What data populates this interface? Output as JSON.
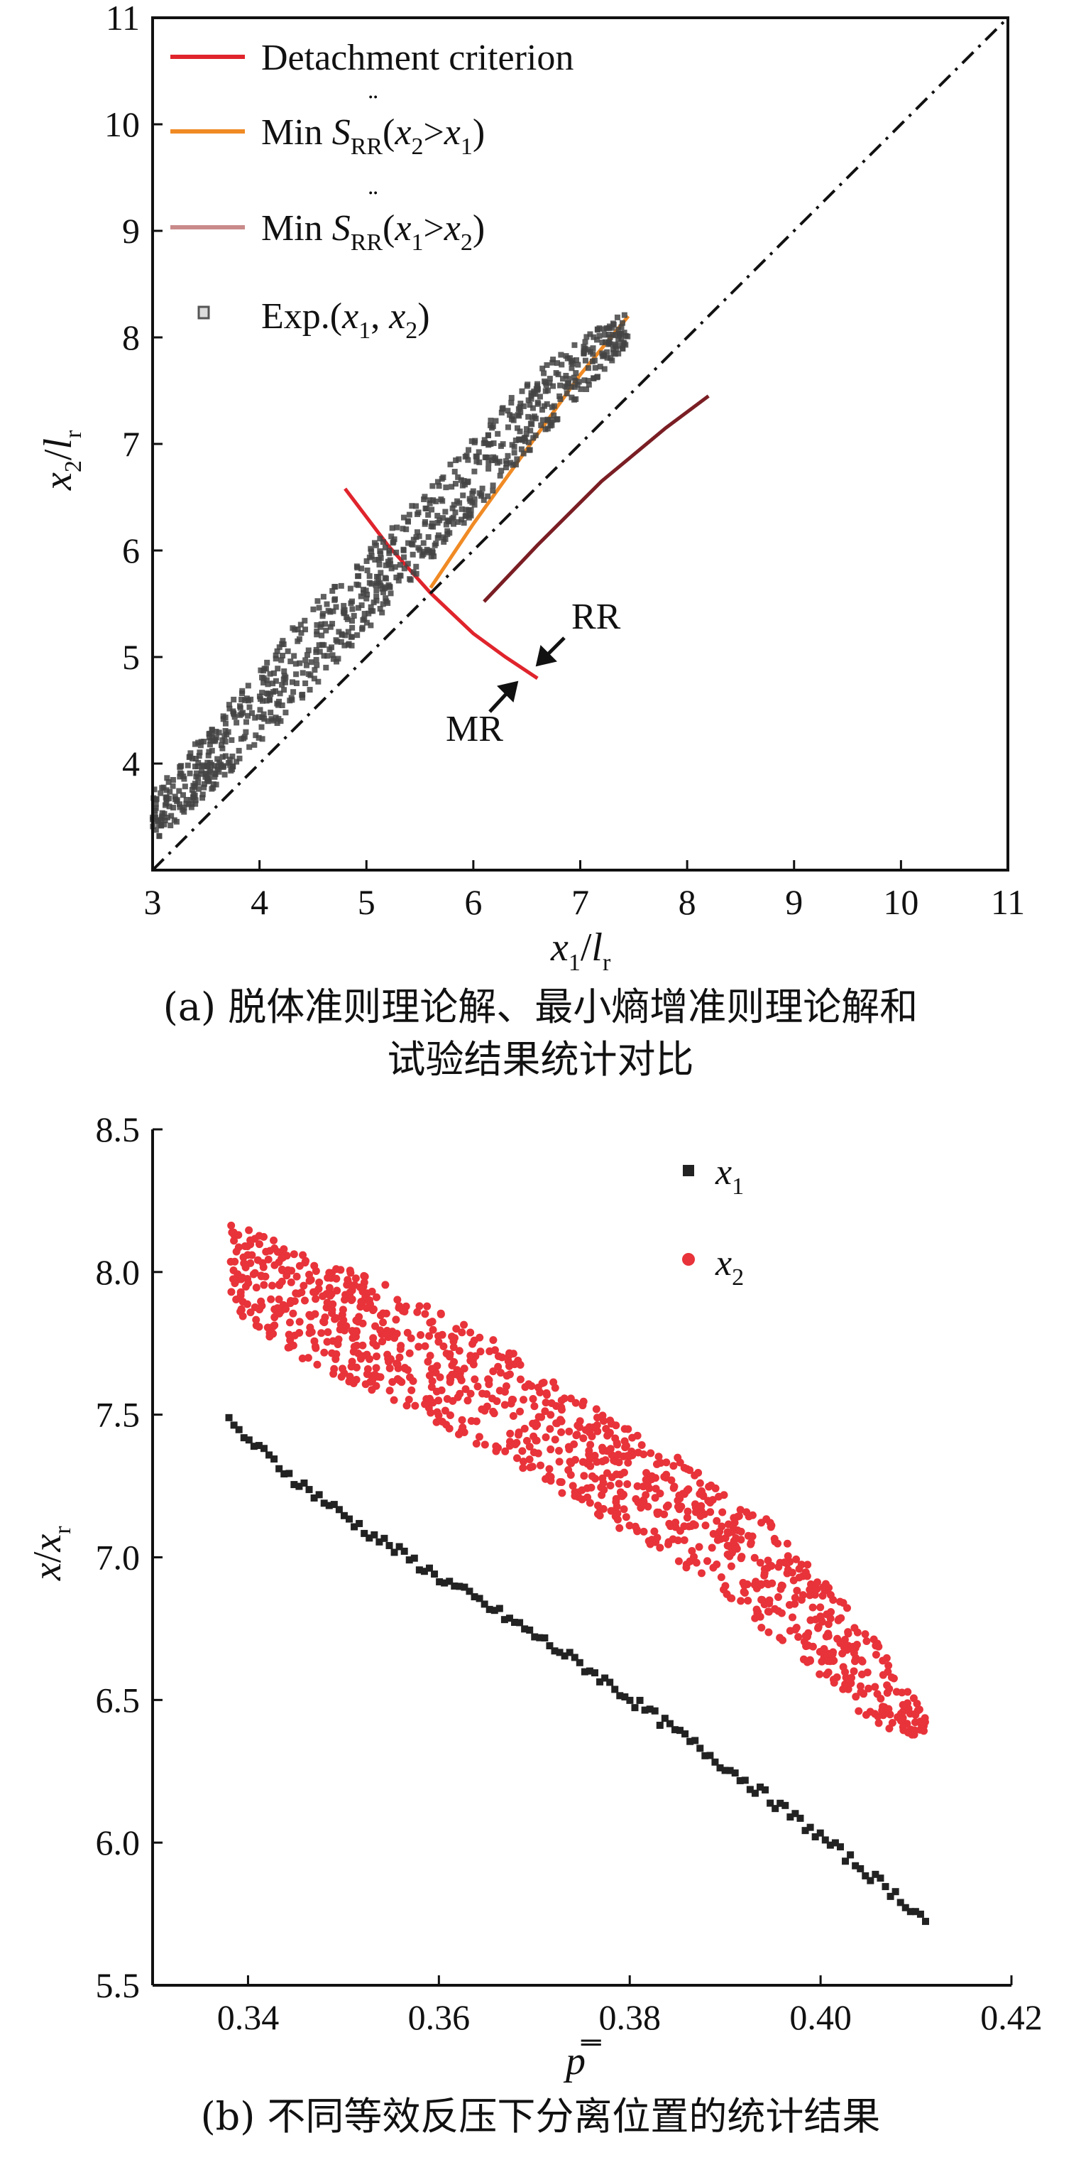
{
  "chart_data": [
    {
      "type": "scatter",
      "panel": "a",
      "xlim": [
        3,
        11
      ],
      "ylim": [
        3,
        11
      ],
      "xticks": [
        "3",
        "4",
        "5",
        "6",
        "7",
        "8",
        "9",
        "10",
        "11"
      ],
      "yticks": [
        "3",
        "4",
        "5",
        "6",
        "7",
        "8",
        "9",
        "10",
        "11"
      ],
      "xlabel": {
        "main": "x",
        "sub": "1",
        "sep": "/",
        "denom": "l",
        "denom_sub": "r"
      },
      "ylabel": {
        "main": "x",
        "sub": "2",
        "sep": "/",
        "denom": "l",
        "denom_sub": "r"
      },
      "legend": {
        "placement": "top-left",
        "entries": [
          {
            "text": "Detachment criterion",
            "color": "#e0242c",
            "kind": "line"
          },
          {
            "text": "Min S̈RR(x2>x1)",
            "pre": "Min ",
            "S": "S",
            "sub": "RR",
            "paren_open": "(",
            "a": "x",
            "asub": "2",
            "op": ">",
            "b": "x",
            "bsub": "1",
            "paren_close": ")",
            "color": "#f08a24",
            "kind": "line"
          },
          {
            "text": "Min S̈RR(x1>x2)",
            "pre": "Min ",
            "S": "S",
            "sub": "RR",
            "paren_open": "(",
            "a": "x",
            "asub": "1",
            "op": ">",
            "b": "x",
            "bsub": "2",
            "paren_close": ")",
            "color": "#c98a8a",
            "kind": "line"
          },
          {
            "text": "Exp.(x1, x2)",
            "pre": "Exp.(",
            "a": "x",
            "asub": "1",
            "mid": ", ",
            "b": "x",
            "bsub": "2",
            "post": ")",
            "color": "#444444",
            "kind": "marker"
          }
        ]
      },
      "series": [
        {
          "name": "Detachment criterion",
          "color": "#e0242c",
          "x": [
            4.8,
            5.2,
            5.6,
            6.0,
            6.3,
            6.6
          ],
          "y": [
            6.58,
            6.05,
            5.6,
            5.22,
            5.0,
            4.8
          ]
        },
        {
          "name": "Min S̈RR(x2>x1)",
          "color": "#f08a24",
          "x": [
            5.6,
            6.0,
            6.5,
            7.0,
            7.45
          ],
          "y": [
            5.65,
            6.25,
            6.95,
            7.65,
            8.2
          ]
        },
        {
          "name": "Min S̈RR(x1>x2)",
          "color": "#7a1e24",
          "x": [
            6.1,
            6.6,
            7.2,
            7.8,
            8.2
          ],
          "y": [
            5.52,
            6.05,
            6.65,
            7.15,
            7.45
          ]
        },
        {
          "name": "Exp.(x1, x2)",
          "color": "#444444",
          "kind": "band",
          "x": [
            3.0,
            3.5,
            4.0,
            4.5,
            5.0,
            5.5,
            6.0,
            6.5,
            7.0,
            7.45
          ],
          "y_low": [
            3.25,
            3.7,
            4.2,
            4.7,
            5.25,
            5.8,
            6.35,
            6.9,
            7.45,
            7.95
          ],
          "y_high": [
            3.75,
            4.3,
            4.9,
            5.5,
            6.0,
            6.5,
            7.05,
            7.6,
            8.0,
            8.25
          ]
        },
        {
          "name": "",
          "color": "#111111",
          "style": "dash-dot",
          "x": [
            3,
            11
          ],
          "y": [
            3,
            11
          ]
        }
      ],
      "annotations": [
        {
          "text": "RR",
          "x": 7.1,
          "y": 5.4
        },
        {
          "text": "MR",
          "x": 6.0,
          "y": 4.3
        }
      ]
    },
    {
      "type": "scatter",
      "panel": "b",
      "xlim": [
        0.33,
        0.42
      ],
      "ylim": [
        5.5,
        8.5
      ],
      "xticks": [
        "0.34",
        "0.36",
        "0.38",
        "0.40",
        "0.42"
      ],
      "yticks": [
        "5.5",
        "6.0",
        "6.5",
        "7.0",
        "7.5",
        "8.0",
        "8.5"
      ],
      "xlabel": "p̿",
      "ylabel": {
        "main": "x",
        "sep": "/",
        "denom": "x",
        "denom_sub": "r"
      },
      "legend": {
        "placement": "top-right",
        "entries": [
          {
            "a": "x",
            "asub": "1",
            "color": "#222222",
            "marker": "square"
          },
          {
            "a": "x",
            "asub": "2",
            "color": "#e8333a",
            "marker": "circle"
          }
        ]
      },
      "series": [
        {
          "name": "x1",
          "color": "#222222",
          "x": [
            0.338,
            0.345,
            0.352,
            0.36,
            0.368,
            0.376,
            0.384,
            0.392,
            0.4,
            0.407,
            0.411
          ],
          "y": [
            7.47,
            7.27,
            7.1,
            6.93,
            6.77,
            6.6,
            6.41,
            6.22,
            6.02,
            5.84,
            5.73
          ]
        },
        {
          "name": "x2",
          "color": "#e8333a",
          "kind": "band",
          "x": [
            0.338,
            0.345,
            0.355,
            0.365,
            0.375,
            0.385,
            0.395,
            0.405,
            0.411
          ],
          "y_low": [
            7.88,
            7.7,
            7.55,
            7.38,
            7.18,
            6.98,
            6.72,
            6.42,
            6.35
          ],
          "y_high": [
            8.18,
            8.08,
            7.95,
            7.78,
            7.55,
            7.35,
            7.12,
            6.75,
            6.45
          ]
        }
      ]
    }
  ],
  "captions": {
    "a_line1": "(a) 脱体准则理论解、最小熵增准则理论解和",
    "a_line2": "试验结果统计对比",
    "b": "(b) 不同等效反压下分离位置的统计结果"
  }
}
